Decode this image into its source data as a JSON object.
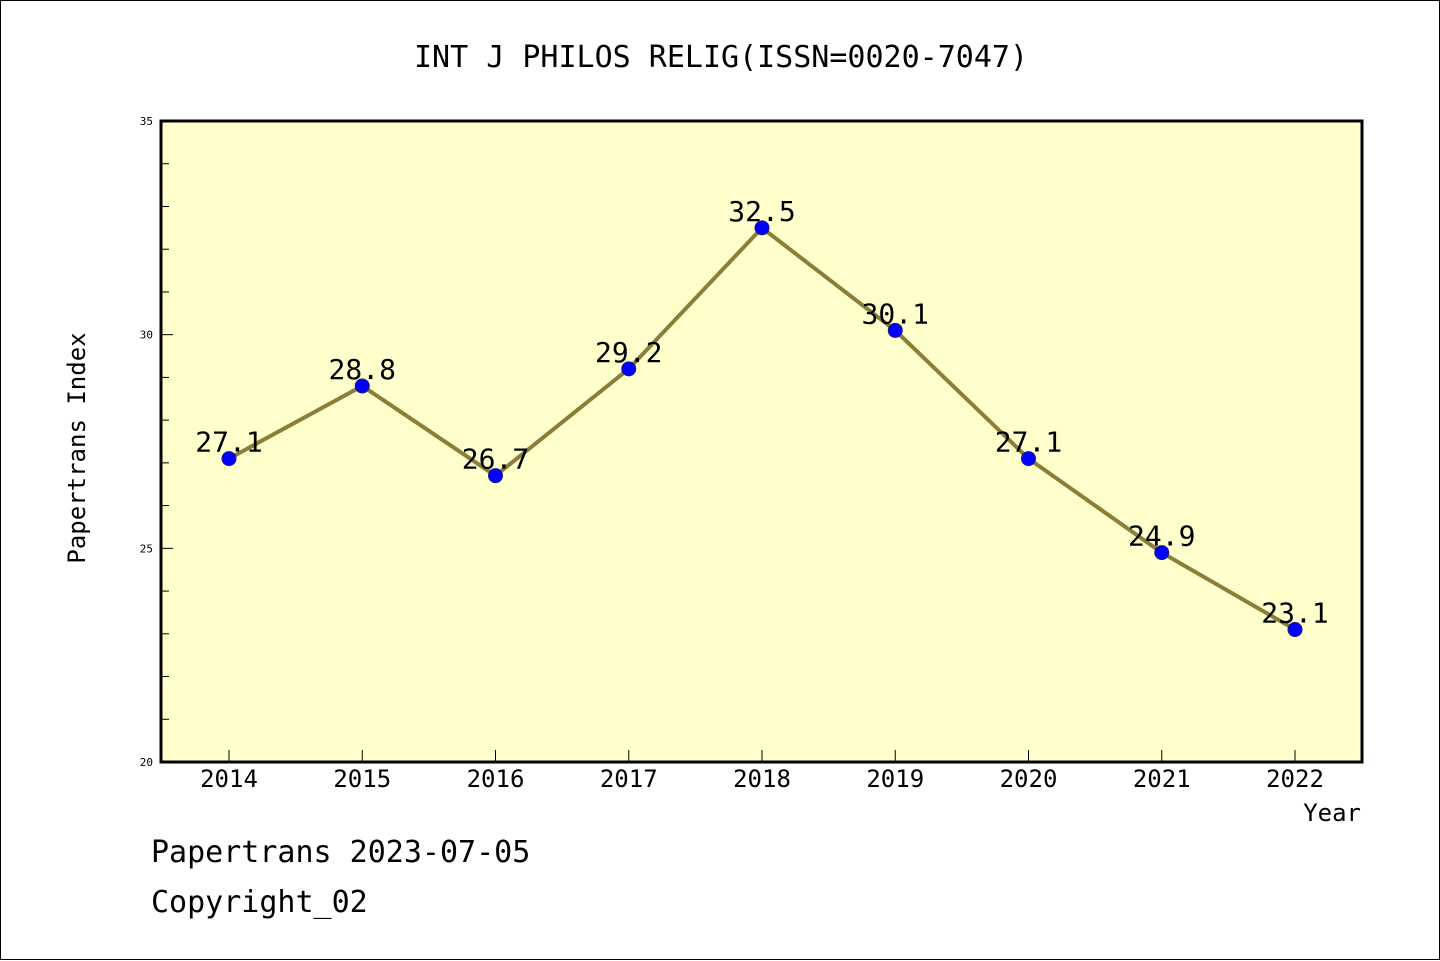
{
  "chart_data": {
    "type": "line",
    "title": "INT J PHILOS RELIG(ISSN=0020-7047)",
    "xlabel": "Year",
    "ylabel": "Papertrans Index",
    "categories": [
      "2014",
      "2015",
      "2016",
      "2017",
      "2018",
      "2019",
      "2020",
      "2021",
      "2022"
    ],
    "series": [
      {
        "values": [
          27.1,
          28.8,
          26.7,
          29.2,
          32.5,
          30.1,
          27.1,
          24.9,
          23.1
        ],
        "labels": [
          "27.1",
          "28.8",
          "26.7",
          "29.2",
          "32.5",
          "30.1",
          "27.1",
          "24.9",
          "23.1"
        ]
      }
    ],
    "ylim": [
      20,
      35
    ],
    "y_ticks": [
      "20",
      "25",
      "30",
      "35"
    ],
    "y_minor_step": 1,
    "grid": false,
    "colors": {
      "plot_background": "#ffffcc",
      "line": "#8b7d3a",
      "marker": "#0000ff"
    }
  },
  "footer": {
    "line1": "Papertrans 2023-07-05",
    "line2": "Copyright_02"
  }
}
